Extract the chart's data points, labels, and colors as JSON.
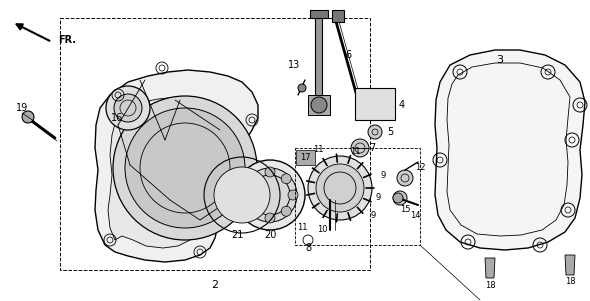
{
  "background_color": "#ffffff",
  "fig_width": 5.9,
  "fig_height": 3.01,
  "dpi": 100
}
